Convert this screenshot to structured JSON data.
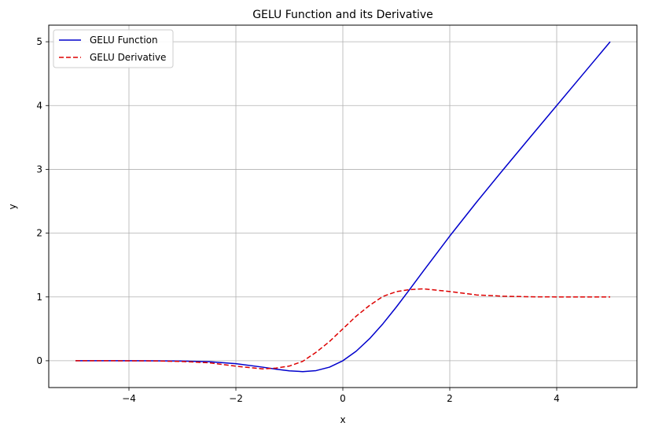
{
  "chart_data": {
    "type": "line",
    "title": "GELU Function and its Derivative",
    "xlabel": "x",
    "ylabel": "y",
    "xlim": [
      -5.5,
      5.5
    ],
    "ylim": [
      -0.42,
      5.26
    ],
    "xticks": [
      -4,
      -2,
      0,
      2,
      4
    ],
    "yticks": [
      0,
      1,
      2,
      3,
      4,
      5
    ],
    "xtick_labels": [
      "−4",
      "−2",
      "0",
      "2",
      "4"
    ],
    "ytick_labels": [
      "0",
      "1",
      "2",
      "3",
      "4",
      "5"
    ],
    "grid": true,
    "legend_position": "top-left",
    "x_range": [
      -5,
      5
    ],
    "series": [
      {
        "name": "GELU Function",
        "color": "#0000cc",
        "style": "solid",
        "x": [
          -5,
          -4.5,
          -4,
          -3.5,
          -3,
          -2.5,
          -2,
          -1.5,
          -1.25,
          -1,
          -0.75,
          -0.5,
          -0.25,
          0,
          0.25,
          0.5,
          0.75,
          1,
          1.25,
          1.5,
          2,
          2.5,
          3,
          3.5,
          4,
          4.5,
          5
        ],
        "y": [
          0,
          -0.0001,
          -0.0001,
          -0.0008,
          -0.0036,
          -0.0155,
          -0.0454,
          -0.1004,
          -0.1321,
          -0.1587,
          -0.17,
          -0.1543,
          -0.1003,
          0,
          0.1497,
          0.3457,
          0.58,
          0.8413,
          1.1179,
          1.3996,
          1.9546,
          2.4845,
          2.9964,
          3.4992,
          3.9999,
          4.5,
          5.0
        ]
      },
      {
        "name": "GELU Derivative",
        "color": "#dd0000",
        "style": "dashed",
        "x": [
          -5,
          -4.5,
          -4,
          -3.5,
          -3,
          -2.5,
          -2,
          -1.5,
          -1.25,
          -1,
          -0.75,
          -0.5,
          -0.25,
          0,
          0.25,
          0.5,
          0.75,
          1,
          1.25,
          1.5,
          2,
          2.5,
          3,
          3.5,
          4,
          4.5,
          5
        ],
        "y": [
          0,
          -0.0001,
          -0.0005,
          -0.0025,
          -0.0119,
          -0.0315,
          -0.0852,
          -0.1274,
          -0.115,
          -0.0833,
          -0.0087,
          0.1325,
          0.3014,
          0.5,
          0.6986,
          0.8675,
          1.0087,
          1.0833,
          1.115,
          1.1274,
          1.0852,
          1.0315,
          1.0119,
          1.0025,
          1.0005,
          1.0001,
          1.0
        ]
      }
    ]
  }
}
